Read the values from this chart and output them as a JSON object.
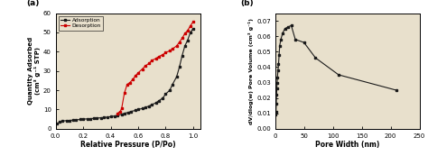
{
  "panel_a": {
    "label": "(a)",
    "adsorption_x": [
      0.01,
      0.03,
      0.05,
      0.08,
      0.1,
      0.13,
      0.15,
      0.18,
      0.2,
      0.23,
      0.25,
      0.28,
      0.3,
      0.33,
      0.35,
      0.38,
      0.4,
      0.43,
      0.45,
      0.48,
      0.5,
      0.53,
      0.55,
      0.58,
      0.6,
      0.63,
      0.65,
      0.68,
      0.7,
      0.73,
      0.75,
      0.78,
      0.8,
      0.83,
      0.85,
      0.88,
      0.9,
      0.92,
      0.94,
      0.96,
      0.98,
      1.0
    ],
    "adsorption_y": [
      2.5,
      3.5,
      4.0,
      4.2,
      4.3,
      4.5,
      4.6,
      4.8,
      5.0,
      5.1,
      5.2,
      5.4,
      5.5,
      5.7,
      5.8,
      6.0,
      6.3,
      6.6,
      7.0,
      7.5,
      8.0,
      8.5,
      9.0,
      9.5,
      10.0,
      10.5,
      11.0,
      11.8,
      12.5,
      13.5,
      14.5,
      16.0,
      18.0,
      20.0,
      23.0,
      27.0,
      32.0,
      38.0,
      43.0,
      46.0,
      50.0,
      52.0
    ],
    "desorption_x": [
      0.45,
      0.47,
      0.48,
      0.5,
      0.52,
      0.54,
      0.56,
      0.58,
      0.6,
      0.63,
      0.65,
      0.68,
      0.7,
      0.73,
      0.75,
      0.78,
      0.8,
      0.83,
      0.85,
      0.88,
      0.9,
      0.92,
      0.94,
      0.96,
      0.98,
      1.0
    ],
    "desorption_y": [
      8.0,
      9.0,
      10.5,
      18.5,
      23.0,
      24.0,
      25.5,
      27.5,
      29.0,
      31.0,
      32.5,
      34.0,
      35.5,
      36.5,
      37.5,
      38.5,
      39.5,
      40.5,
      41.5,
      43.0,
      45.0,
      47.0,
      49.5,
      51.0,
      53.5,
      55.5
    ],
    "xlabel": "Relative Pressure (P/Po)",
    "ylabel_line1": "Quantity Adsorbed",
    "ylabel_line2": "(cm³ g⁻¹ STP)",
    "xlim": [
      0.0,
      1.05
    ],
    "ylim": [
      0,
      60
    ],
    "yticks": [
      0,
      10,
      20,
      30,
      40,
      50,
      60
    ],
    "xticks": [
      0.0,
      0.2,
      0.4,
      0.6,
      0.8,
      1.0
    ],
    "adsorption_color": "#1a1a1a",
    "desorption_color": "#cc0000",
    "legend_adsorption": "Adsorption",
    "legend_desorption": "Desorption"
  },
  "panel_b": {
    "label": "(b)",
    "x": [
      1.0,
      1.5,
      2.0,
      2.5,
      3.0,
      3.5,
      4.0,
      5.0,
      6.0,
      7.0,
      8.0,
      10.0,
      13.0,
      17.0,
      22.0,
      28.0,
      35.0,
      50.0,
      70.0,
      110.0,
      210.0
    ],
    "y": [
      0.009,
      0.011,
      0.016,
      0.022,
      0.026,
      0.03,
      0.033,
      0.038,
      0.042,
      0.048,
      0.054,
      0.058,
      0.062,
      0.065,
      0.066,
      0.067,
      0.058,
      0.056,
      0.046,
      0.035,
      0.025
    ],
    "xlabel": "Pore Width (nm)",
    "ylabel": "dV/dlog(w) Pore Volume (cm³ g⁻¹)",
    "xlim": [
      0,
      250
    ],
    "ylim": [
      0.0,
      0.075
    ],
    "xticks": [
      0,
      50,
      100,
      150,
      200,
      250
    ],
    "yticks": [
      0.0,
      0.01,
      0.02,
      0.03,
      0.04,
      0.05,
      0.06,
      0.07
    ],
    "color": "#1a1a1a"
  },
  "plot_bg": "#e8e0cc",
  "fig_bg": "#ffffff"
}
